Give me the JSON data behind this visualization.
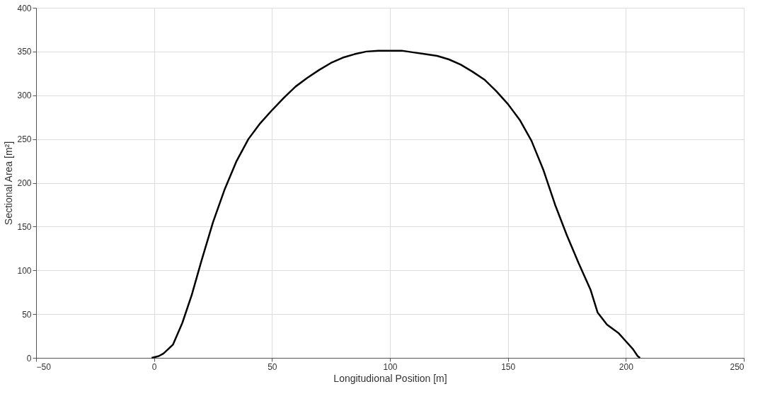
{
  "chart_data": {
    "type": "line",
    "xlabel": "Longitudional Position [m]",
    "ylabel": "Sectional Area [m²]",
    "xlim": [
      -50,
      250
    ],
    "xticks": [
      -50,
      0,
      50,
      100,
      150,
      200,
      250
    ],
    "ylim": [
      0,
      400
    ],
    "yticks": [
      0,
      50,
      100,
      150,
      200,
      250,
      300,
      350,
      400
    ],
    "grid": true,
    "marker": "none",
    "line_style": "solid",
    "series": [
      {
        "color": "#000000",
        "x": [
          -1,
          2,
          4,
          8,
          12,
          16,
          20,
          25,
          30,
          35,
          40,
          45,
          50,
          55,
          60,
          65,
          70,
          75,
          80,
          85,
          90,
          95,
          100,
          105,
          110,
          115,
          120,
          125,
          130,
          135,
          140,
          145,
          150,
          155,
          160,
          165,
          170,
          175,
          180,
          185,
          188,
          192,
          197,
          200,
          203,
          205,
          206
        ],
        "values": [
          0,
          2,
          5,
          15,
          40,
          72,
          110,
          155,
          193,
          225,
          250,
          268,
          283,
          297,
          310,
          320,
          329,
          337,
          343,
          347,
          350,
          351,
          351,
          351,
          349,
          347,
          345,
          341,
          335,
          327,
          318,
          305,
          290,
          272,
          248,
          215,
          175,
          140,
          108,
          78,
          52,
          38,
          28,
          19,
          10,
          2,
          0
        ]
      }
    ]
  }
}
